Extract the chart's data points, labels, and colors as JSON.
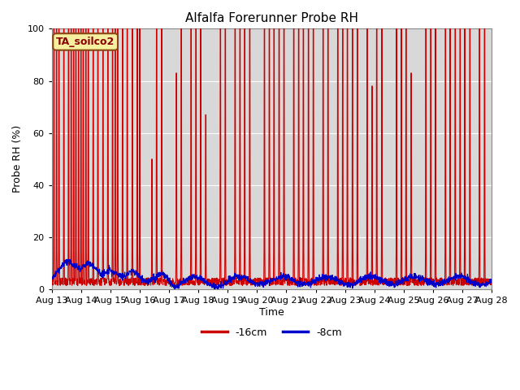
{
  "title": "Alfalfa Forerunner Probe RH",
  "ylabel": "Probe RH (%)",
  "xlabel": "Time",
  "ylim": [
    0,
    100
  ],
  "annotation_text": "TA_soilco2",
  "legend_labels": [
    "-16cm",
    "-8cm"
  ],
  "legend_colors": [
    "#cc0000",
    "#0000cc"
  ],
  "x_tick_labels": [
    "Aug 13",
    "Aug 14",
    "Aug 15",
    "Aug 16",
    "Aug 17",
    "Aug 18",
    "Aug 19",
    "Aug 20",
    "Aug 21",
    "Aug 22",
    "Aug 23",
    "Aug 24",
    "Aug 25",
    "Aug 26",
    "Aug 27",
    "Aug 28"
  ],
  "bg_color": "#ffffff",
  "plot_bg_color": "#d8d8d8",
  "red_color": "#cc0000",
  "blue_color": "#0000cc",
  "grid_color": "#ffffff",
  "n_days": 15,
  "spike_times": [
    0.08,
    0.17,
    0.25,
    0.42,
    0.58,
    0.67,
    0.75,
    0.83,
    0.92,
    1.0,
    1.08,
    1.17,
    1.25,
    1.42,
    1.58,
    1.75,
    1.92,
    2.08,
    2.17,
    2.25,
    2.42,
    2.58,
    2.75,
    2.92,
    3.0,
    3.42,
    3.58,
    3.75,
    4.25,
    4.42,
    4.75,
    4.92,
    5.08,
    5.25,
    5.75,
    5.92,
    6.25,
    6.42,
    6.58,
    6.75,
    7.25,
    7.42,
    7.58,
    7.75,
    7.92,
    8.25,
    8.42,
    8.58,
    8.75,
    8.92,
    9.25,
    9.42,
    9.75,
    9.92,
    10.08,
    10.25,
    10.42,
    10.75,
    10.92,
    11.08,
    11.25,
    11.75,
    11.92,
    12.08,
    12.25,
    12.75,
    12.92,
    13.08,
    13.42,
    13.58,
    13.75,
    13.92,
    14.08,
    14.25,
    14.58,
    14.75
  ],
  "spike_heights": [
    100,
    100,
    100,
    100,
    100,
    100,
    100,
    100,
    100,
    100,
    100,
    100,
    100,
    100,
    100,
    100,
    100,
    100,
    100,
    100,
    100,
    100,
    100,
    100,
    100,
    50,
    100,
    100,
    83,
    100,
    100,
    100,
    100,
    67,
    100,
    100,
    100,
    100,
    100,
    100,
    100,
    100,
    100,
    100,
    100,
    100,
    100,
    100,
    100,
    100,
    100,
    100,
    100,
    100,
    100,
    100,
    100,
    100,
    78,
    100,
    100,
    100,
    100,
    100,
    83,
    100,
    100,
    100,
    100,
    100,
    100,
    100,
    100,
    100,
    100,
    100
  ]
}
